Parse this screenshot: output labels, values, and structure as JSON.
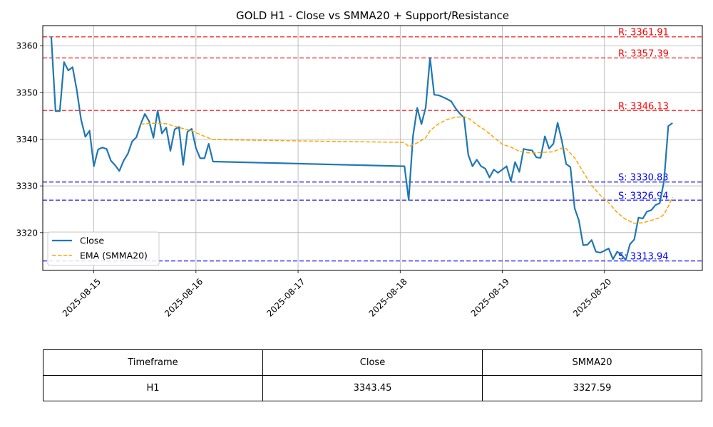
{
  "chart_data": {
    "type": "line",
    "title": "GOLD H1 - Close vs SMMA20 + Support/Resistance",
    "xlabel": "",
    "ylabel": "",
    "grid": true,
    "legend_position": "center-left",
    "x_tick_labels": [
      "2025-08-15",
      "2025-08-16",
      "2025-08-17",
      "2025-08-18",
      "2025-08-19",
      "2025-08-20"
    ],
    "y_ticks": [
      3320,
      3330,
      3340,
      3350,
      3360
    ],
    "ylim": [
      3311.9,
      3364.3
    ],
    "xlim": [
      "2025-08-14 12:00",
      "2025-08-20 23:00"
    ],
    "series": [
      {
        "name": "Close",
        "color": "#1f77b4",
        "style": "solid",
        "points": [
          [
            "2025-08-14 14:00",
            3361.9
          ],
          [
            "2025-08-14 15:00",
            3346.0
          ],
          [
            "2025-08-14 16:00",
            3346.0
          ],
          [
            "2025-08-14 17:00",
            3356.5
          ],
          [
            "2025-08-14 18:00",
            3354.7
          ],
          [
            "2025-08-14 19:00",
            3355.4
          ],
          [
            "2025-08-14 20:00",
            3350.5
          ],
          [
            "2025-08-14 21:00",
            3344.2
          ],
          [
            "2025-08-14 22:00",
            3340.5
          ],
          [
            "2025-08-14 23:00",
            3341.8
          ],
          [
            "2025-08-15 00:00",
            3334.2
          ],
          [
            "2025-08-15 01:00",
            3337.8
          ],
          [
            "2025-08-15 02:00",
            3338.2
          ],
          [
            "2025-08-15 03:00",
            3337.9
          ],
          [
            "2025-08-15 04:00",
            3335.4
          ],
          [
            "2025-08-15 05:00",
            3334.4
          ],
          [
            "2025-08-15 06:00",
            3333.2
          ],
          [
            "2025-08-15 07:00",
            3335.4
          ],
          [
            "2025-08-15 08:00",
            3336.9
          ],
          [
            "2025-08-15 09:00",
            3339.5
          ],
          [
            "2025-08-15 10:00",
            3340.4
          ],
          [
            "2025-08-15 11:00",
            3343.2
          ],
          [
            "2025-08-15 12:00",
            3345.4
          ],
          [
            "2025-08-15 13:00",
            3343.8
          ],
          [
            "2025-08-15 14:00",
            3340.3
          ],
          [
            "2025-08-15 15:00",
            3346.1
          ],
          [
            "2025-08-15 16:00",
            3341.2
          ],
          [
            "2025-08-15 17:00",
            3342.5
          ],
          [
            "2025-08-15 18:00",
            3337.5
          ],
          [
            "2025-08-15 19:00",
            3342.1
          ],
          [
            "2025-08-15 20:00",
            3342.6
          ],
          [
            "2025-08-15 21:00",
            3334.5
          ],
          [
            "2025-08-15 22:00",
            3341.6
          ],
          [
            "2025-08-15 23:00",
            3342.2
          ],
          [
            "2025-08-16 00:00",
            3338.1
          ],
          [
            "2025-08-16 01:00",
            3335.9
          ],
          [
            "2025-08-16 02:00",
            3335.9
          ],
          [
            "2025-08-16 03:00",
            3339.0
          ],
          [
            "2025-08-16 04:00",
            3335.2
          ],
          [
            "2025-08-18 01:00",
            3334.2
          ],
          [
            "2025-08-18 02:00",
            3327.0
          ],
          [
            "2025-08-18 03:00",
            3340.6
          ],
          [
            "2025-08-18 04:00",
            3346.7
          ],
          [
            "2025-08-18 05:00",
            3343.2
          ],
          [
            "2025-08-18 06:00",
            3346.8
          ],
          [
            "2025-08-18 07:00",
            3357.4
          ],
          [
            "2025-08-18 08:00",
            3349.5
          ],
          [
            "2025-08-18 09:00",
            3349.4
          ],
          [
            "2025-08-18 10:00",
            3349.0
          ],
          [
            "2025-08-18 11:00",
            3348.6
          ],
          [
            "2025-08-18 12:00",
            3348.1
          ],
          [
            "2025-08-18 13:00",
            3346.6
          ],
          [
            "2025-08-18 14:00",
            3345.5
          ],
          [
            "2025-08-18 15:00",
            3344.6
          ],
          [
            "2025-08-18 16:00",
            3336.6
          ],
          [
            "2025-08-18 17:00",
            3334.2
          ],
          [
            "2025-08-18 18:00",
            3335.6
          ],
          [
            "2025-08-18 19:00",
            3334.2
          ],
          [
            "2025-08-18 20:00",
            3333.7
          ],
          [
            "2025-08-18 21:00",
            3331.8
          ],
          [
            "2025-08-18 22:00",
            3333.5
          ],
          [
            "2025-08-18 23:00",
            3332.8
          ],
          [
            "2025-08-19 00:00",
            3333.5
          ],
          [
            "2025-08-19 01:00",
            3334.2
          ],
          [
            "2025-08-19 02:00",
            3331.0
          ],
          [
            "2025-08-19 03:00",
            3335.1
          ],
          [
            "2025-08-19 04:00",
            3333.0
          ],
          [
            "2025-08-19 05:00",
            3337.9
          ],
          [
            "2025-08-19 06:00",
            3337.7
          ],
          [
            "2025-08-19 07:00",
            3337.6
          ],
          [
            "2025-08-19 08:00",
            3336.1
          ],
          [
            "2025-08-19 09:00",
            3336.0
          ],
          [
            "2025-08-19 10:00",
            3340.6
          ],
          [
            "2025-08-19 11:00",
            3338.0
          ],
          [
            "2025-08-19 12:00",
            3339.0
          ],
          [
            "2025-08-19 13:00",
            3343.5
          ],
          [
            "2025-08-19 14:00",
            3339.6
          ],
          [
            "2025-08-19 15:00",
            3334.7
          ],
          [
            "2025-08-19 16:00",
            3334.0
          ],
          [
            "2025-08-19 17:00",
            3325.2
          ],
          [
            "2025-08-19 18:00",
            3322.6
          ],
          [
            "2025-08-19 19:00",
            3317.3
          ],
          [
            "2025-08-19 20:00",
            3317.4
          ],
          [
            "2025-08-19 21:00",
            3318.4
          ],
          [
            "2025-08-19 22:00",
            3315.9
          ],
          [
            "2025-08-19 23:00",
            3315.7
          ],
          [
            "2025-08-20 00:00",
            3316.1
          ],
          [
            "2025-08-20 01:00",
            3316.6
          ],
          [
            "2025-08-20 02:00",
            3314.3
          ],
          [
            "2025-08-20 03:00",
            3315.9
          ],
          [
            "2025-08-20 04:00",
            3315.3
          ],
          [
            "2025-08-20 05:00",
            3314.1
          ],
          [
            "2025-08-20 06:00",
            3317.5
          ],
          [
            "2025-08-20 07:00",
            3318.5
          ],
          [
            "2025-08-20 08:00",
            3323.2
          ],
          [
            "2025-08-20 09:00",
            3323.0
          ],
          [
            "2025-08-20 10:00",
            3324.5
          ],
          [
            "2025-08-20 11:00",
            3324.8
          ],
          [
            "2025-08-20 12:00",
            3325.9
          ],
          [
            "2025-08-20 13:00",
            3326.3
          ],
          [
            "2025-08-20 14:00",
            3331.0
          ],
          [
            "2025-08-20 15:00",
            3342.8
          ],
          [
            "2025-08-20 16:00",
            3343.45
          ]
        ]
      },
      {
        "name": "EMA (SMMA20)",
        "color": "#ffa500",
        "style": "dashed",
        "points": [
          [
            "2025-08-15 11:00",
            3343.2
          ],
          [
            "2025-08-15 14:00",
            3343.4
          ],
          [
            "2025-08-15 17:00",
            3343.3
          ],
          [
            "2025-08-15 20:00",
            3342.5
          ],
          [
            "2025-08-15 23:00",
            3341.8
          ],
          [
            "2025-08-16 02:00",
            3340.6
          ],
          [
            "2025-08-16 04:00",
            3339.9
          ],
          [
            "2025-08-18 01:00",
            3339.3
          ],
          [
            "2025-08-18 02:00",
            3338.4
          ],
          [
            "2025-08-18 04:00",
            3339.2
          ],
          [
            "2025-08-18 06:00",
            3340.3
          ],
          [
            "2025-08-18 07:00",
            3341.8
          ],
          [
            "2025-08-18 09:00",
            3343.3
          ],
          [
            "2025-08-18 11:00",
            3344.2
          ],
          [
            "2025-08-18 13:00",
            3344.7
          ],
          [
            "2025-08-18 15:00",
            3344.8
          ],
          [
            "2025-08-18 16:00",
            3344.5
          ],
          [
            "2025-08-18 18:00",
            3343.1
          ],
          [
            "2025-08-18 20:00",
            3341.9
          ],
          [
            "2025-08-18 22:00",
            3340.4
          ],
          [
            "2025-08-19 00:00",
            3338.9
          ],
          [
            "2025-08-19 02:00",
            3338.3
          ],
          [
            "2025-08-19 04:00",
            3337.4
          ],
          [
            "2025-08-19 06:00",
            3337.1
          ],
          [
            "2025-08-19 08:00",
            3337.1
          ],
          [
            "2025-08-19 10:00",
            3337.2
          ],
          [
            "2025-08-19 12:00",
            3337.3
          ],
          [
            "2025-08-19 14:00",
            3338.1
          ],
          [
            "2025-08-19 15:00",
            3338.0
          ],
          [
            "2025-08-19 17:00",
            3336.0
          ],
          [
            "2025-08-19 19:00",
            3333.0
          ],
          [
            "2025-08-19 21:00",
            3330.1
          ],
          [
            "2025-08-19 23:00",
            3328.0
          ],
          [
            "2025-08-20 01:00",
            3326.4
          ],
          [
            "2025-08-20 03:00",
            3324.3
          ],
          [
            "2025-08-20 05:00",
            3322.8
          ],
          [
            "2025-08-20 07:00",
            3322.0
          ],
          [
            "2025-08-20 09:00",
            3322.1
          ],
          [
            "2025-08-20 11:00",
            3322.6
          ],
          [
            "2025-08-20 13:00",
            3323.2
          ],
          [
            "2025-08-20 14:00",
            3323.9
          ],
          [
            "2025-08-20 15:00",
            3325.6
          ],
          [
            "2025-08-20 16:00",
            3327.59
          ]
        ]
      }
    ],
    "levels": [
      {
        "kind": "resistance",
        "value": 3361.91,
        "label": "R: 3361.91",
        "color": "#ff0000"
      },
      {
        "kind": "resistance",
        "value": 3357.39,
        "label": "R: 3357.39",
        "color": "#ff0000"
      },
      {
        "kind": "resistance",
        "value": 3346.13,
        "label": "R: 3346.13",
        "color": "#ff0000"
      },
      {
        "kind": "support",
        "value": 3330.83,
        "label": "S: 3330.83",
        "color": "#0000ff"
      },
      {
        "kind": "support",
        "value": 3326.94,
        "label": "S: 3326.94",
        "color": "#0000ff"
      },
      {
        "kind": "support",
        "value": 3313.94,
        "label": "S: 3313.94",
        "color": "#0000ff"
      }
    ]
  },
  "table": {
    "headers": [
      "Timeframe",
      "Close",
      "SMMA20"
    ],
    "row": [
      "H1",
      "3343.45",
      "3327.59"
    ]
  }
}
